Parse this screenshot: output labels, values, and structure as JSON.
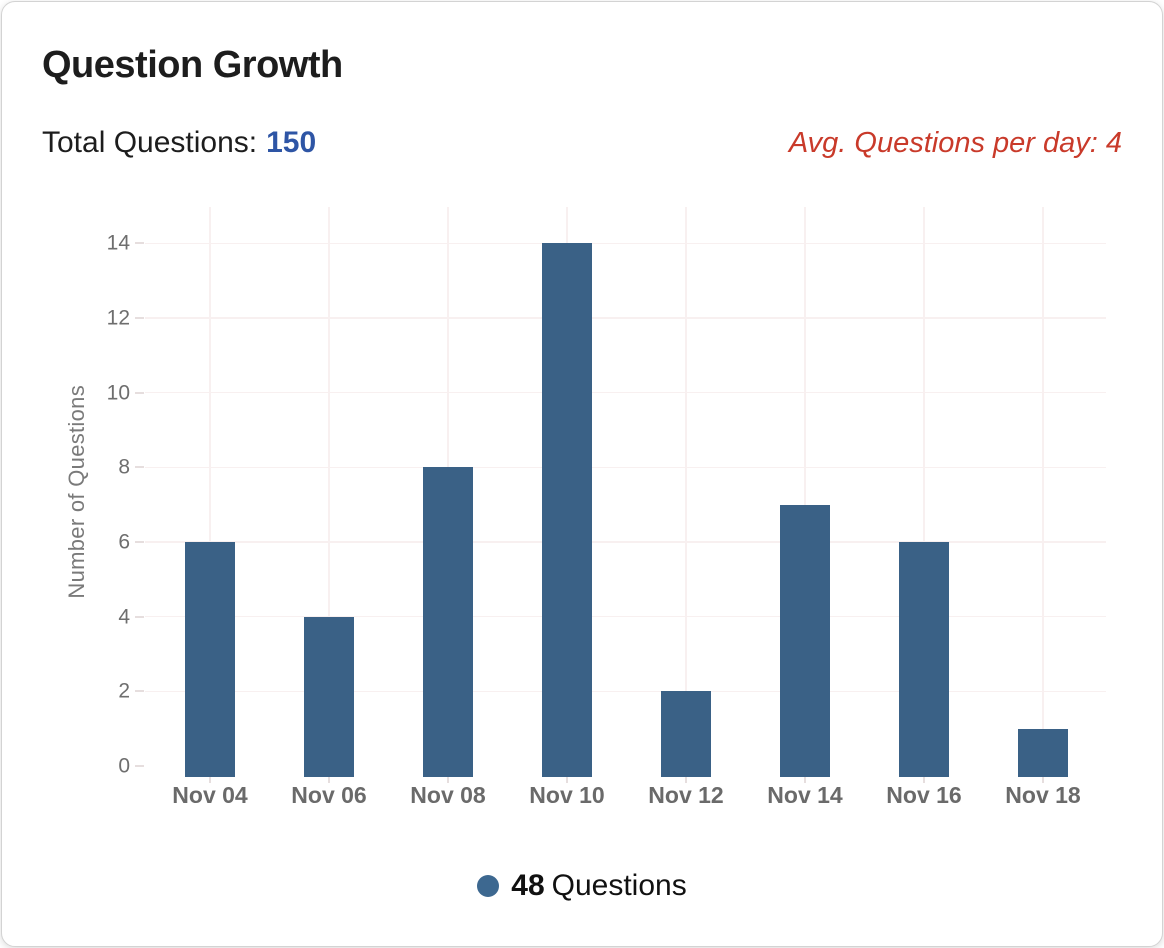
{
  "header": {
    "title": "Question Growth",
    "total_label": "Total Questions:",
    "total_value": "150",
    "avg_text": "Avg. Questions per day: 4"
  },
  "legend": {
    "marker": "circle-icon",
    "count": "48",
    "label": "Questions"
  },
  "colors": {
    "bar": "#3A6186",
    "legend_dot": "#3D6890",
    "total_value_blue": "#2E55A5",
    "avg_text_red": "#C93A2A",
    "gridline": "#F8F0F0",
    "tick": "#E6DEDE",
    "axis_text": "#6E6E6E",
    "axis_title": "#7A7A7A"
  },
  "chart_data": {
    "type": "bar",
    "title": "Question Growth",
    "categories": [
      "Nov 04",
      "Nov 06",
      "Nov 08",
      "Nov 10",
      "Nov 12",
      "Nov 14",
      "Nov 16",
      "Nov 18"
    ],
    "values": [
      6,
      4,
      8,
      14,
      2,
      7,
      6,
      1
    ],
    "series_name": "Questions",
    "series_total": 48,
    "total_questions": 150,
    "avg_questions_per_day": 4,
    "xlabel": "",
    "ylabel": "Number of Questions",
    "yticks": [
      0,
      2,
      4,
      6,
      8,
      10,
      12,
      14
    ],
    "ylim": [
      0,
      15
    ],
    "grid": true,
    "bar_color": "#3A6186",
    "legend": "48 Questions",
    "legend_position": "bottom"
  }
}
